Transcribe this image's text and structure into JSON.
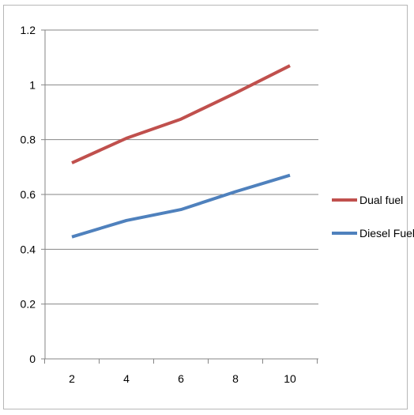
{
  "chart_data": {
    "type": "line",
    "x": [
      2,
      4,
      6,
      8,
      10
    ],
    "series": [
      {
        "name": "Dual fuel",
        "values": [
          0.715,
          0.805,
          0.875,
          0.97,
          1.07
        ],
        "color": "#c0504d"
      },
      {
        "name": "Diesel Fuel",
        "values": [
          0.445,
          0.505,
          0.545,
          0.61,
          0.67
        ],
        "color": "#4f81bd"
      }
    ],
    "x_ticks": [
      "2",
      "4",
      "6",
      "8",
      "10"
    ],
    "y_ticks": [
      "0",
      "0.2",
      "0.4",
      "0.6",
      "0.8",
      "1",
      "1.2"
    ],
    "y_tick_values": [
      0,
      0.2,
      0.4,
      0.6,
      0.8,
      1.0,
      1.2
    ],
    "ylim": [
      0,
      1.2
    ],
    "title": "",
    "xlabel": "",
    "ylabel": "",
    "grid": "horizontal",
    "legend_position": "right",
    "gridline_color": "#868686"
  }
}
